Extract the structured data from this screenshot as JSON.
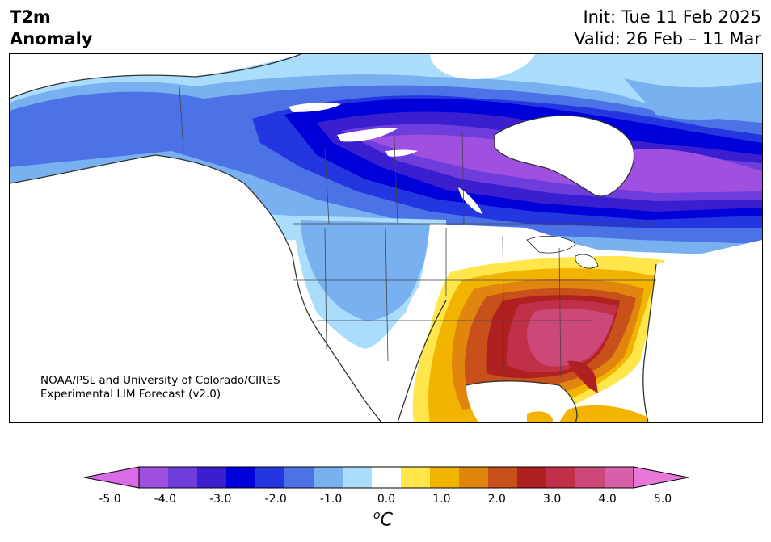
{
  "header": {
    "title_line1": "T2m",
    "title_line2": "Anomaly",
    "init": "Init: Tue 11 Feb 2025",
    "valid": "Valid: 26 Feb – 11 Mar"
  },
  "credit": {
    "line1": "NOAA/PSL and University of Colorado/CIRES",
    "line2": "Experimental LIM Forecast (v2.0)"
  },
  "colorbar": {
    "colors": [
      "#d96be8",
      "#a050e0",
      "#6f3ddc",
      "#3a1fd0",
      "#0000d8",
      "#2436e0",
      "#4c73e6",
      "#78b0f0",
      "#aadcfc",
      "#ffffff",
      "#ffe64a",
      "#f2b400",
      "#e0860e",
      "#c8501a",
      "#b02020",
      "#c03048",
      "#cc4878",
      "#d860a8",
      "#e878d8"
    ],
    "ticks": [
      "-5.0",
      "-4.0",
      "-3.0",
      "-2.0",
      "-1.0",
      "0.0",
      "1.0",
      "2.0",
      "3.0",
      "4.0",
      "5.0"
    ],
    "unit_letter": "C",
    "unit_super": "o"
  }
}
